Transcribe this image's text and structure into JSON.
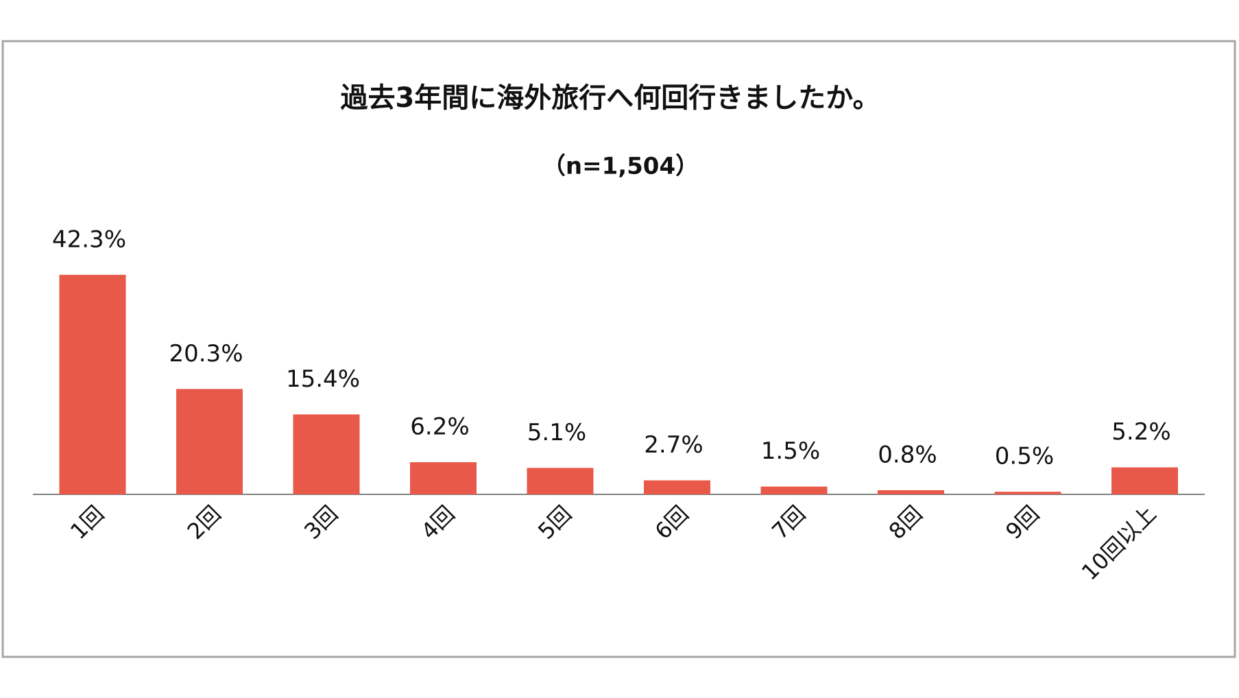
{
  "chart_data": {
    "type": "bar",
    "title": "過去3年間に海外旅行へ何回行きましたか。",
    "subtitle": "（n=1,504）",
    "categories": [
      "1回",
      "2回",
      "3回",
      "4回",
      "5回",
      "6回",
      "7回",
      "8回",
      "9回",
      "10回以上"
    ],
    "values": [
      42.3,
      20.3,
      15.4,
      6.2,
      5.1,
      2.7,
      1.5,
      0.8,
      0.5,
      5.2
    ],
    "value_labels": [
      "42.3%",
      "20.3%",
      "15.4%",
      "6.2%",
      "5.1%",
      "2.7%",
      "1.5%",
      "0.8%",
      "0.5%",
      "5.2%"
    ],
    "color": "#e8594a"
  }
}
